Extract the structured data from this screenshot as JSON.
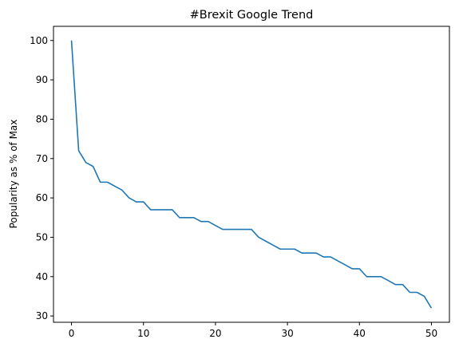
{
  "chart_data": {
    "type": "line",
    "title": "#Brexit Google Trend",
    "xlabel": "",
    "ylabel": "Popularity as % of Max",
    "xlim": [
      -2.5,
      52.5
    ],
    "ylim": [
      28.4,
      103.6
    ],
    "xticks": [
      0,
      10,
      20,
      30,
      40,
      50
    ],
    "yticks": [
      30,
      40,
      50,
      60,
      70,
      80,
      90,
      100
    ],
    "grid": false,
    "legend": "none",
    "series_color": "#1f77b4",
    "x": [
      0,
      1,
      2,
      3,
      4,
      5,
      6,
      7,
      8,
      9,
      10,
      11,
      12,
      13,
      14,
      15,
      16,
      17,
      18,
      19,
      20,
      21,
      22,
      23,
      24,
      25,
      26,
      27,
      28,
      29,
      30,
      31,
      32,
      33,
      34,
      35,
      36,
      37,
      38,
      39,
      40,
      41,
      42,
      43,
      44,
      45,
      46,
      47,
      48,
      49,
      50
    ],
    "values": [
      100,
      72,
      69,
      68,
      64,
      64,
      63,
      62,
      60,
      59,
      59,
      57,
      57,
      57,
      57,
      55,
      55,
      55,
      54,
      54,
      53,
      52,
      52,
      52,
      52,
      52,
      50,
      49,
      48,
      47,
      47,
      47,
      46,
      46,
      46,
      45,
      45,
      44,
      43,
      42,
      42,
      40,
      40,
      40,
      39,
      38,
      38,
      36,
      36,
      35,
      32
    ]
  }
}
